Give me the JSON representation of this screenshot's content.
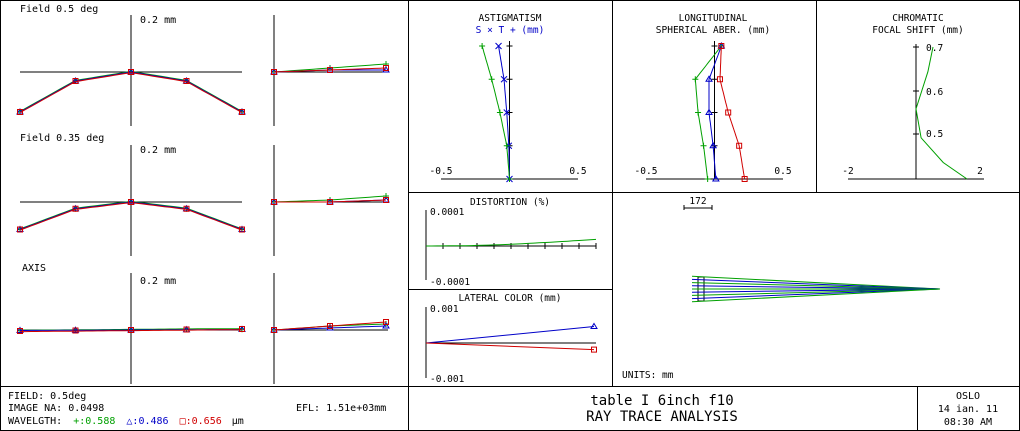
{
  "colors": {
    "green": "#00a000",
    "blue": "#0000c8",
    "red": "#d00000",
    "axis": "#000000"
  },
  "ray_fans": {
    "rows": [
      {
        "field_label": "Field 0.5 deg",
        "scale_label": "0.2 mm"
      },
      {
        "field_label": "Field 0.35 deg",
        "scale_label": "0.2 mm"
      },
      {
        "field_label": "AXIS",
        "scale_label": "0.2 mm"
      }
    ]
  },
  "legend_bottom": {
    "field": "FIELD: 0.5deg",
    "image_na": "IMAGE NA: 0.0498",
    "efl": "EFL: 1.51e+03mm",
    "wavelength_label": "WAVELGTH:",
    "wl_green": "+:0.588",
    "wl_blue": "△:0.486",
    "wl_red": "□:0.656",
    "wl_unit": "µm"
  },
  "title_block": {
    "line1": "table I 6inch f10",
    "line2": "RAY TRACE ANALYSIS",
    "org": "OSLO",
    "date": "14 ian. 11",
    "time": "08:30 AM"
  },
  "astigmatism": {
    "title": "ASTIGMATISM",
    "legend": "S × T + (mm)",
    "x_min_label": "-0.5",
    "x_max_label": "0.5"
  },
  "spherical": {
    "title1": "LONGITUDINAL",
    "title2": "SPHERICAL ABER. (mm)",
    "x_min_label": "-0.5",
    "x_max_label": "0.5"
  },
  "chromatic": {
    "title1": "CHROMATIC",
    "title2": "FOCAL SHIFT (mm)",
    "x_min_label": "-2",
    "x_max_label": "2",
    "y_labels": [
      "0.7",
      "0.6",
      "0.5"
    ]
  },
  "distortion": {
    "title": "DISTORTION (%)",
    "y_max_label": "0.0001",
    "y_min_label": "-0.0001"
  },
  "lateral_color": {
    "title": "LATERAL COLOR (mm)",
    "y_max_label": "0.001",
    "y_min_label": "-0.001"
  },
  "layout_view": {
    "scale_label": "172",
    "units_label": "UNITS: mm"
  },
  "chart_data": [
    {
      "type": "line",
      "name": "ray_fan_field_0.5_tangential",
      "x": [
        -1,
        -0.5,
        0,
        0.5,
        1
      ],
      "series": [
        {
          "name": "0.588",
          "values": [
            -0.16,
            -0.036,
            0,
            -0.036,
            -0.16
          ]
        },
        {
          "name": "0.486",
          "values": [
            -0.16,
            -0.036,
            0,
            -0.036,
            -0.16
          ]
        },
        {
          "name": "0.656",
          "values": [
            -0.16,
            -0.036,
            0,
            -0.036,
            -0.16
          ]
        }
      ],
      "ylim": [
        -0.2,
        0.2
      ]
    },
    {
      "type": "line",
      "name": "ray_fan_field_0.5_sagittal",
      "x": [
        0,
        0.5,
        1
      ],
      "series": [
        {
          "name": "0.588",
          "values": [
            0,
            0.002,
            0.004
          ]
        },
        {
          "name": "0.486",
          "values": [
            0,
            0.001,
            0.001
          ]
        },
        {
          "name": "0.656",
          "values": [
            0,
            0.001,
            0.002
          ]
        }
      ],
      "ylim": [
        -0.2,
        0.2
      ]
    },
    {
      "type": "line",
      "name": "ray_fan_field_0.35_tangential",
      "x": [
        -1,
        -0.5,
        0,
        0.5,
        1
      ],
      "series": [
        {
          "name": "0.588",
          "values": [
            -0.11,
            -0.027,
            0,
            -0.027,
            -0.11
          ]
        },
        {
          "name": "0.486",
          "values": [
            -0.11,
            -0.027,
            0,
            -0.027,
            -0.11
          ]
        },
        {
          "name": "0.656",
          "values": [
            -0.11,
            -0.027,
            0,
            -0.027,
            -0.11
          ]
        }
      ],
      "ylim": [
        -0.2,
        0.2
      ]
    },
    {
      "type": "line",
      "name": "ray_fan_field_0.35_sagittal",
      "x": [
        0,
        0.5,
        1
      ],
      "series": [
        {
          "name": "0.588",
          "values": [
            0,
            0.001,
            0.003
          ]
        },
        {
          "name": "0.486",
          "values": [
            0,
            0.0,
            0.001
          ]
        },
        {
          "name": "0.656",
          "values": [
            0,
            0.0,
            0.001
          ]
        }
      ],
      "ylim": [
        -0.2,
        0.2
      ]
    },
    {
      "type": "line",
      "name": "ray_fan_axis_tangential",
      "x": [
        -1,
        -0.5,
        0,
        0.5,
        1
      ],
      "series": [
        {
          "name": "0.588",
          "values": [
            -0.003,
            -0.002,
            0,
            0.002,
            0.003
          ]
        },
        {
          "name": "0.486",
          "values": [
            -0.002,
            -0.001,
            0,
            0.001,
            0.002
          ]
        },
        {
          "name": "0.656",
          "values": [
            -0.004,
            -0.002,
            0,
            0.002,
            0.004
          ]
        }
      ],
      "ylim": [
        -0.2,
        0.2
      ]
    },
    {
      "type": "line",
      "name": "ray_fan_axis_sagittal",
      "x": [
        0,
        0.5,
        1
      ],
      "series": [
        {
          "name": "0.588",
          "values": [
            0,
            0.002,
            0.003
          ]
        },
        {
          "name": "0.486",
          "values": [
            0,
            0.001,
            0.002
          ]
        },
        {
          "name": "0.656",
          "values": [
            0,
            0.002,
            0.004
          ]
        }
      ],
      "ylim": [
        -0.2,
        0.2
      ]
    },
    {
      "type": "line",
      "name": "astigmatism",
      "xlim": [
        -0.5,
        0.5
      ],
      "ylim": [
        0,
        1
      ],
      "series": [
        {
          "name": "S",
          "y": [
            1.0,
            0.75,
            0.5,
            0.25,
            0.0
          ],
          "x": [
            -0.08,
            -0.04,
            -0.02,
            -0.005,
            0.0
          ]
        },
        {
          "name": "T",
          "y": [
            1.0,
            0.75,
            0.5,
            0.25,
            0.0
          ],
          "x": [
            -0.2,
            -0.13,
            -0.07,
            -0.02,
            0.0
          ]
        }
      ]
    },
    {
      "type": "line",
      "name": "longitudinal_spherical_aberration",
      "xlim": [
        -0.5,
        0.5
      ],
      "ylim": [
        0,
        1
      ],
      "series": [
        {
          "name": "0.588",
          "y": [
            1.0,
            0.75,
            0.5,
            0.25,
            0.0
          ],
          "x": [
            0.05,
            -0.14,
            -0.12,
            -0.08,
            -0.05
          ]
        },
        {
          "name": "0.486",
          "y": [
            1.0,
            0.75,
            0.5,
            0.25,
            0.0
          ],
          "x": [
            0.05,
            -0.04,
            -0.04,
            -0.01,
            0.01
          ]
        },
        {
          "name": "0.656",
          "y": [
            1.0,
            0.75,
            0.5,
            0.25,
            0.0
          ],
          "x": [
            0.05,
            0.04,
            0.1,
            0.18,
            0.22
          ]
        }
      ]
    },
    {
      "type": "line",
      "name": "chromatic_focal_shift",
      "xlim": [
        -2,
        2
      ],
      "y_labels": [
        "0.5",
        "0.6",
        "0.7"
      ],
      "series": [
        {
          "name": "focal shift",
          "points": [
            [
              0.5,
              0.72
            ],
            [
              0.35,
              0.66
            ],
            [
              0.0,
              0.57
            ],
            [
              0.15,
              0.5
            ],
            [
              0.8,
              0.44
            ],
            [
              1.5,
              0.4
            ]
          ]
        }
      ]
    },
    {
      "type": "line",
      "name": "distortion",
      "xlim": [
        0,
        1
      ],
      "ylim": [
        -0.0001,
        0.0001
      ],
      "series": [
        {
          "name": "distortion",
          "x": [
            0,
            0.25,
            0.5,
            0.75,
            1.0
          ],
          "values": [
            0,
            1e-06,
            5e-06,
            1.2e-05,
            2e-05
          ]
        }
      ]
    },
    {
      "type": "line",
      "name": "lateral_color",
      "xlim": [
        0,
        1
      ],
      "ylim": [
        -0.001,
        0.001
      ],
      "series": [
        {
          "name": "0.486",
          "x": [
            0,
            1
          ],
          "values": [
            0,
            0.0005
          ]
        },
        {
          "name": "0.656",
          "x": [
            0,
            1
          ],
          "values": [
            0,
            -0.0002
          ]
        }
      ]
    }
  ]
}
